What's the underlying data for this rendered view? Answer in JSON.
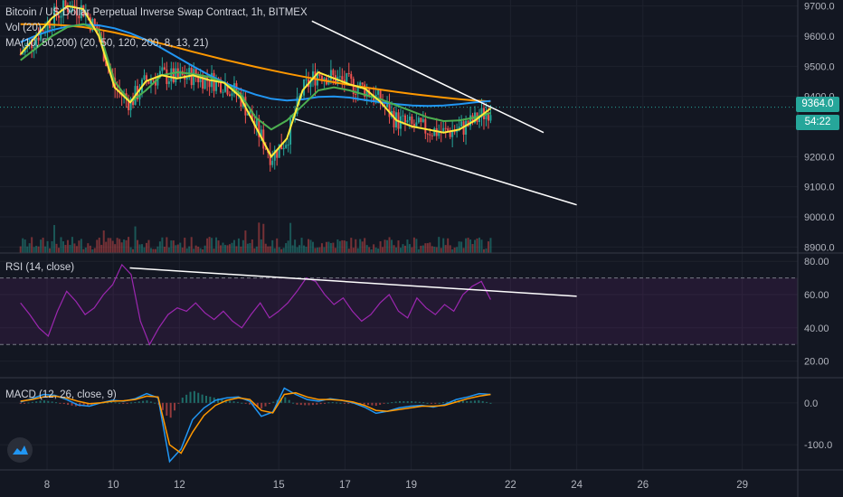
{
  "header": {
    "title": "Bitcoin / US Dollar Perpetual Inverse Swap Contract, 1h, BITMEX",
    "vol_label": "Vol (20)",
    "ma_label": "MA(10, 50,200) (20, 50, 120, 200, 8, 13, 21)"
  },
  "rsi_label": "RSI (14, close)",
  "macd_label": "MACD (12, 26, close, 9)",
  "price_badge": "9364.0",
  "timer_badge": "54:22",
  "icons": {
    "logo": "tradingview-cloud-logo"
  },
  "colors": {
    "background": "#131722",
    "up": "#26a69a",
    "down": "#ef5350",
    "ma_orange": "#ff9800",
    "ma_blue": "#2196f3",
    "ma_green": "#4caf50",
    "ma_yellow": "#ffeb3b",
    "rsi": "#9c27b0",
    "trendline": "#ffffff"
  },
  "chart_data": [
    {
      "type": "candlestick",
      "title": "Bitcoin / US Dollar Perpetual Inverse Swap Contract, 1h, BITMEX",
      "x_ticks": [
        "8",
        "10",
        "12",
        "15",
        "17",
        "19",
        "22",
        "24",
        "26",
        "29"
      ],
      "y_ticks": [
        9700,
        9600,
        9500,
        9400,
        9300,
        9200,
        9100,
        9000,
        8900
      ],
      "ylim": [
        8880,
        9720
      ],
      "last_price": 9364.0,
      "series": [
        {
          "name": "MA 200",
          "color": "#ff9800",
          "values": [
            9640,
            9640,
            9638,
            9635,
            9630,
            9622,
            9612,
            9600,
            9588,
            9575,
            9562,
            9548,
            9535,
            9522,
            9510,
            9498,
            9487,
            9476,
            9466,
            9456,
            9447,
            9438,
            9430,
            9422,
            9415,
            9408,
            9402,
            9396,
            9391,
            9386,
            9383
          ]
        },
        {
          "name": "MA 120",
          "color": "#2196f3",
          "values": [
            9580,
            9602,
            9620,
            9632,
            9638,
            9636,
            9626,
            9610,
            9588,
            9560,
            9530,
            9500,
            9472,
            9446,
            9424,
            9406,
            9392,
            9386,
            9390,
            9398,
            9400,
            9396,
            9388,
            9380,
            9374,
            9370,
            9368,
            9370,
            9374,
            9380,
            9385
          ]
        },
        {
          "name": "MA 50",
          "color": "#4caf50",
          "values": [
            9520,
            9560,
            9600,
            9630,
            9640,
            9620,
            9450,
            9380,
            9420,
            9470,
            9480,
            9475,
            9465,
            9445,
            9410,
            9330,
            9290,
            9320,
            9370,
            9420,
            9430,
            9420,
            9405,
            9390,
            9370,
            9350,
            9330,
            9318,
            9320,
            9330,
            9345
          ]
        },
        {
          "name": "MA 20",
          "color": "#ffeb3b",
          "values": [
            9540,
            9600,
            9660,
            9700,
            9690,
            9600,
            9430,
            9380,
            9450,
            9470,
            9460,
            9470,
            9455,
            9445,
            9400,
            9300,
            9200,
            9260,
            9420,
            9480,
            9460,
            9440,
            9425,
            9380,
            9320,
            9300,
            9290,
            9280,
            9290,
            9320,
            9360
          ]
        }
      ],
      "trendlines": [
        {
          "from": [
            "16",
            9650
          ],
          "to": [
            "23",
            9280
          ]
        },
        {
          "from": [
            "15.5",
            9325
          ],
          "to": [
            "24",
            9040
          ]
        }
      ]
    },
    {
      "type": "line",
      "title": "RSI (14, close)",
      "y_ticks": [
        80.0,
        60.0,
        40.0,
        20.0
      ],
      "ylim": [
        10,
        85
      ],
      "band": [
        30,
        70
      ],
      "series": [
        {
          "name": "RSI",
          "color": "#9c27b0",
          "values": [
            55,
            48,
            40,
            35,
            50,
            62,
            56,
            48,
            52,
            60,
            66,
            78,
            72,
            44,
            30,
            40,
            48,
            52,
            50,
            55,
            49,
            45,
            50,
            44,
            40,
            48,
            55,
            46,
            50,
            55,
            62,
            70,
            68,
            60,
            54,
            58,
            50,
            44,
            48,
            55,
            60,
            50,
            46,
            58,
            52,
            48,
            54,
            50,
            60,
            65,
            68,
            57
          ]
        }
      ],
      "trendline": {
        "from": [
          "10.5",
          76
        ],
        "to": [
          "24",
          59
        ]
      }
    },
    {
      "type": "line",
      "title": "MACD (12, 26, close, 9)",
      "y_ticks": [
        0.0,
        -100.0
      ],
      "ylim": [
        -160,
        60
      ],
      "series": [
        {
          "name": "MACD",
          "color": "#2196f3",
          "values": [
            2,
            10,
            20,
            18,
            8,
            -5,
            -8,
            0,
            6,
            4,
            10,
            22,
            12,
            -140,
            -110,
            -40,
            -12,
            6,
            12,
            14,
            4,
            -32,
            -22,
            35,
            20,
            8,
            4,
            10,
            6,
            0,
            -10,
            -25,
            -20,
            -12,
            -8,
            -6,
            -10,
            -4,
            8,
            14,
            22,
            20
          ]
        },
        {
          "name": "Signal",
          "color": "#ff9800",
          "values": [
            4,
            8,
            14,
            16,
            12,
            4,
            -2,
            0,
            4,
            5,
            8,
            16,
            14,
            -100,
            -120,
            -70,
            -30,
            -6,
            6,
            12,
            8,
            -18,
            -24,
            20,
            24,
            14,
            8,
            8,
            6,
            2,
            -6,
            -18,
            -20,
            -16,
            -12,
            -8,
            -8,
            -6,
            2,
            10,
            16,
            20
          ]
        }
      ]
    }
  ]
}
